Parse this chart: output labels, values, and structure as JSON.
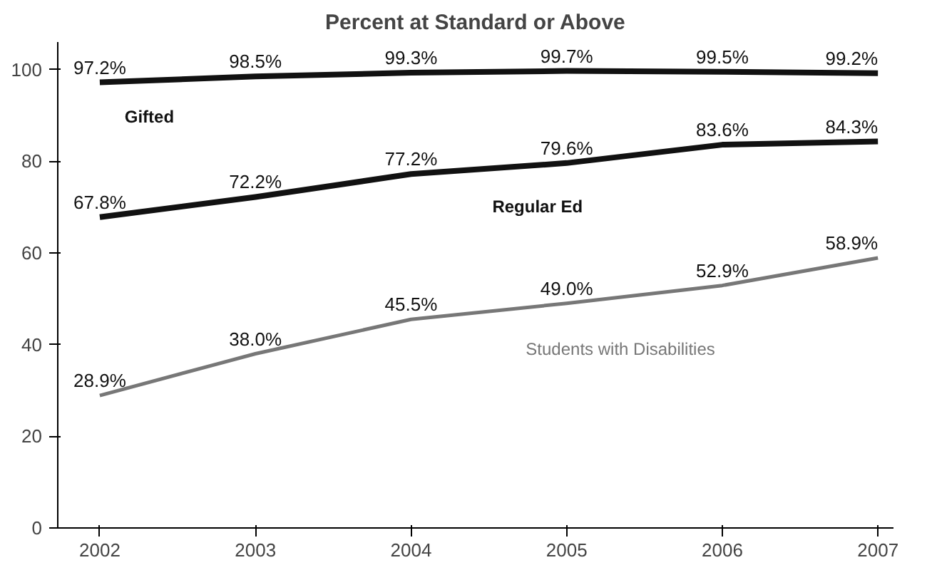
{
  "chart_data": {
    "type": "line",
    "title": "Percent at Standard or Above",
    "x": [
      2002,
      2003,
      2004,
      2005,
      2006,
      2007
    ],
    "xlim": [
      2001.73,
      2007.1
    ],
    "xticks": [
      2002,
      2003,
      2004,
      2005,
      2006,
      2007
    ],
    "ylim": [
      0,
      106
    ],
    "yticks": [
      0,
      20,
      40,
      60,
      80,
      100
    ],
    "grid": false,
    "line_style": "solid",
    "series": [
      {
        "name": "Gifted",
        "color": "#111111",
        "values": [
          97.2,
          98.5,
          99.3,
          99.7,
          99.5,
          99.2
        ],
        "value_labels": [
          "97.2%",
          "98.5%",
          "99.3%",
          "99.7%",
          "99.5%",
          "99.2%"
        ]
      },
      {
        "name": "Regular Ed",
        "color": "#111111",
        "values": [
          67.8,
          72.2,
          77.2,
          79.6,
          83.6,
          84.3
        ],
        "value_labels": [
          "67.8%",
          "72.2%",
          "77.2%",
          "79.6%",
          "83.6%",
          "84.3%"
        ]
      },
      {
        "name": "Students with Disabilities",
        "color": "#777777",
        "values": [
          28.9,
          38.0,
          45.5,
          49.0,
          52.9,
          58.9
        ],
        "value_labels": [
          "28.9%",
          "38.0%",
          "45.5%",
          "49.0%",
          "52.9%",
          "58.9%"
        ]
      }
    ]
  }
}
